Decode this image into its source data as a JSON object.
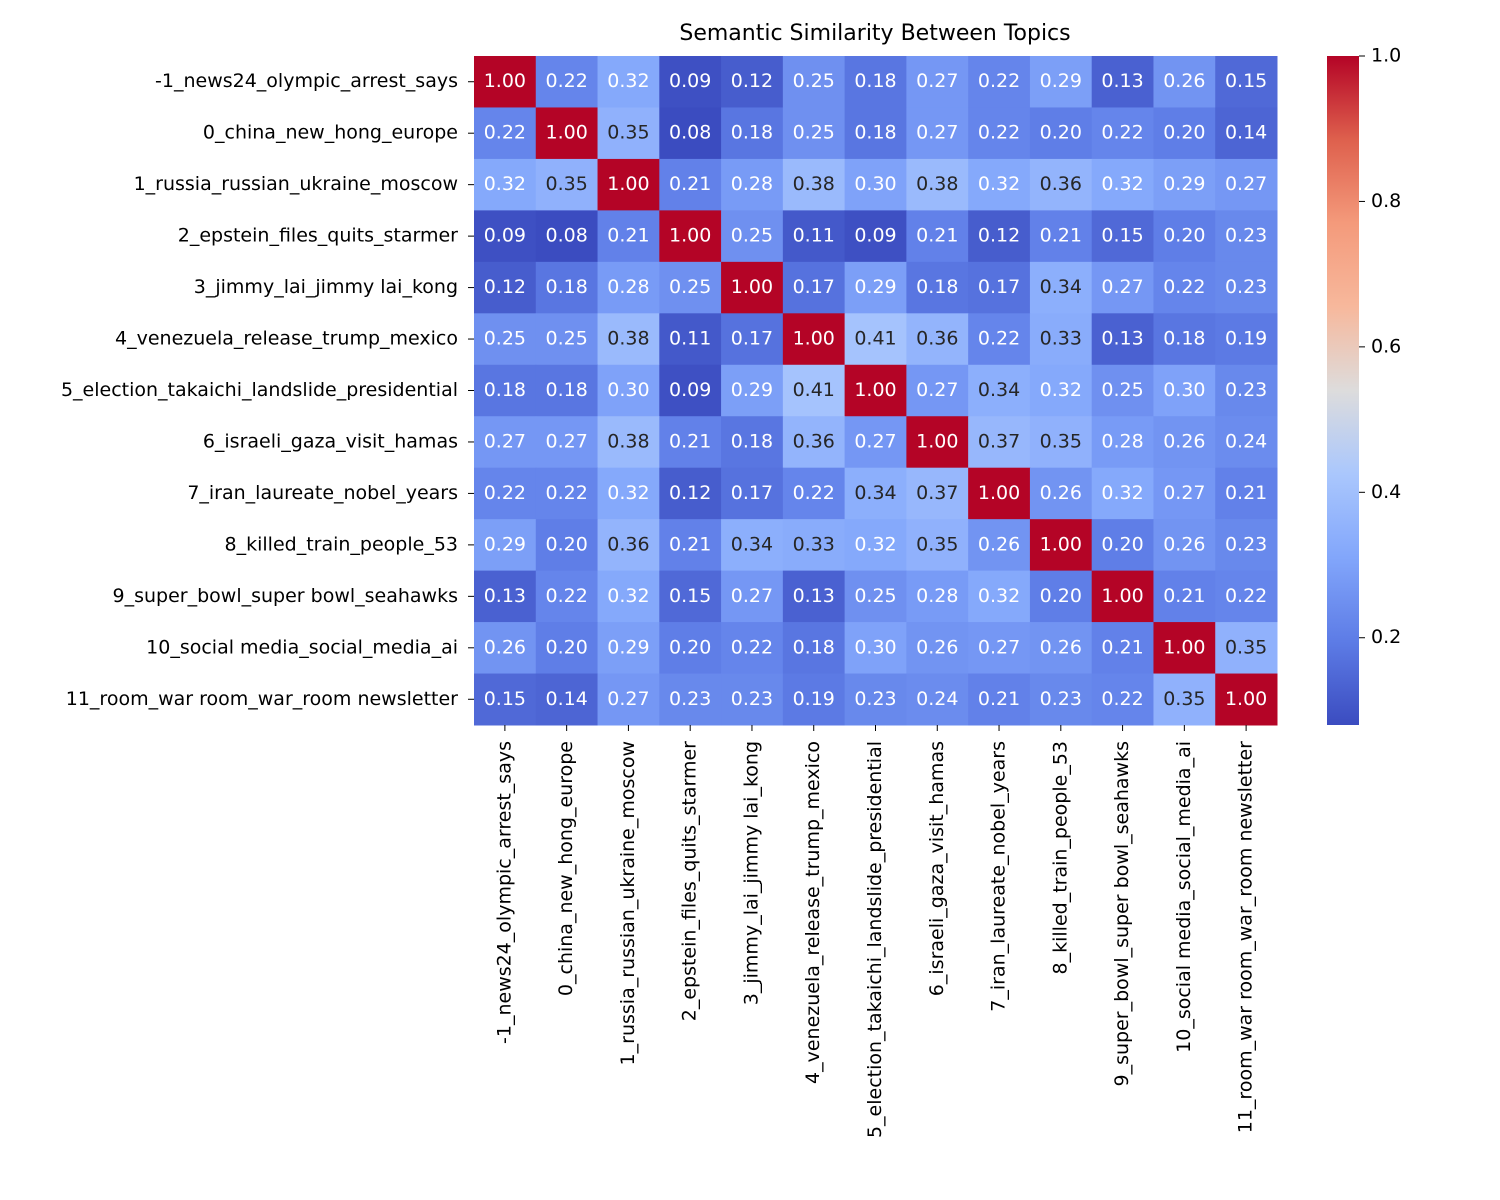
{
  "chart_data": {
    "type": "heatmap",
    "title": "Semantic Similarity Between Topics",
    "categories": [
      "-1_news24_olympic_arrest_says",
      "0_china_new_hong_europe",
      "1_russia_russian_ukraine_moscow",
      "2_epstein_files_quits_starmer",
      "3_jimmy_lai_jimmy lai_kong",
      "4_venezuela_release_trump_mexico",
      "5_election_takaichi_landslide_presidential",
      "6_israeli_gaza_visit_hamas",
      "7_iran_laureate_nobel_years",
      "8_killed_train_people_53",
      "9_super_bowl_super bowl_seahawks",
      "10_social media_social_media_ai",
      "11_room_war room_war_room newsletter"
    ],
    "values": [
      [
        1.0,
        0.22,
        0.32,
        0.09,
        0.12,
        0.25,
        0.18,
        0.27,
        0.22,
        0.29,
        0.13,
        0.26,
        0.15
      ],
      [
        0.22,
        1.0,
        0.35,
        0.08,
        0.18,
        0.25,
        0.18,
        0.27,
        0.22,
        0.2,
        0.22,
        0.2,
        0.14
      ],
      [
        0.32,
        0.35,
        1.0,
        0.21,
        0.28,
        0.38,
        0.3,
        0.38,
        0.32,
        0.36,
        0.32,
        0.29,
        0.27
      ],
      [
        0.09,
        0.08,
        0.21,
        1.0,
        0.25,
        0.11,
        0.09,
        0.21,
        0.12,
        0.21,
        0.15,
        0.2,
        0.23
      ],
      [
        0.12,
        0.18,
        0.28,
        0.25,
        1.0,
        0.17,
        0.29,
        0.18,
        0.17,
        0.34,
        0.27,
        0.22,
        0.23
      ],
      [
        0.25,
        0.25,
        0.38,
        0.11,
        0.17,
        1.0,
        0.41,
        0.36,
        0.22,
        0.33,
        0.13,
        0.18,
        0.19
      ],
      [
        0.18,
        0.18,
        0.3,
        0.09,
        0.29,
        0.41,
        1.0,
        0.27,
        0.34,
        0.32,
        0.25,
        0.3,
        0.23
      ],
      [
        0.27,
        0.27,
        0.38,
        0.21,
        0.18,
        0.36,
        0.27,
        1.0,
        0.37,
        0.35,
        0.28,
        0.26,
        0.24
      ],
      [
        0.22,
        0.22,
        0.32,
        0.12,
        0.17,
        0.22,
        0.34,
        0.37,
        1.0,
        0.26,
        0.32,
        0.27,
        0.21
      ],
      [
        0.29,
        0.2,
        0.36,
        0.21,
        0.34,
        0.33,
        0.32,
        0.35,
        0.26,
        1.0,
        0.2,
        0.26,
        0.23
      ],
      [
        0.13,
        0.22,
        0.32,
        0.15,
        0.27,
        0.13,
        0.25,
        0.28,
        0.32,
        0.2,
        1.0,
        0.21,
        0.22
      ],
      [
        0.26,
        0.2,
        0.29,
        0.2,
        0.22,
        0.18,
        0.3,
        0.26,
        0.27,
        0.26,
        0.21,
        1.0,
        0.35
      ],
      [
        0.15,
        0.14,
        0.27,
        0.23,
        0.23,
        0.19,
        0.23,
        0.24,
        0.21,
        0.23,
        0.22,
        0.35,
        1.0
      ]
    ],
    "value_labels": [
      [
        "1.00",
        "0.22",
        "0.32",
        "0.09",
        "0.12",
        "0.25",
        "0.18",
        "0.27",
        "0.22",
        "0.29",
        "0.13",
        "0.26",
        "0.15"
      ],
      [
        "0.22",
        "1.00",
        "0.35",
        "0.08",
        "0.18",
        "0.25",
        "0.18",
        "0.27",
        "0.22",
        "0.20",
        "0.22",
        "0.20",
        "0.14"
      ],
      [
        "0.32",
        "0.35",
        "1.00",
        "0.21",
        "0.28",
        "0.38",
        "0.30",
        "0.38",
        "0.32",
        "0.36",
        "0.32",
        "0.29",
        "0.27"
      ],
      [
        "0.09",
        "0.08",
        "0.21",
        "1.00",
        "0.25",
        "0.11",
        "0.09",
        "0.21",
        "0.12",
        "0.21",
        "0.15",
        "0.20",
        "0.23"
      ],
      [
        "0.12",
        "0.18",
        "0.28",
        "0.25",
        "1.00",
        "0.17",
        "0.29",
        "0.18",
        "0.17",
        "0.34",
        "0.27",
        "0.22",
        "0.23"
      ],
      [
        "0.25",
        "0.25",
        "0.38",
        "0.11",
        "0.17",
        "1.00",
        "0.41",
        "0.36",
        "0.22",
        "0.33",
        "0.13",
        "0.18",
        "0.19"
      ],
      [
        "0.18",
        "0.18",
        "0.30",
        "0.09",
        "0.29",
        "0.41",
        "1.00",
        "0.27",
        "0.34",
        "0.32",
        "0.25",
        "0.30",
        "0.23"
      ],
      [
        "0.27",
        "0.27",
        "0.38",
        "0.21",
        "0.18",
        "0.36",
        "0.27",
        "1.00",
        "0.37",
        "0.35",
        "0.28",
        "0.26",
        "0.24"
      ],
      [
        "0.22",
        "0.22",
        "0.32",
        "0.12",
        "0.17",
        "0.22",
        "0.34",
        "0.37",
        "1.00",
        "0.26",
        "0.32",
        "0.27",
        "0.21"
      ],
      [
        "0.29",
        "0.20",
        "0.36",
        "0.21",
        "0.34",
        "0.33",
        "0.32",
        "0.35",
        "0.26",
        "1.00",
        "0.20",
        "0.26",
        "0.23"
      ],
      [
        "0.13",
        "0.22",
        "0.32",
        "0.15",
        "0.27",
        "0.13",
        "0.25",
        "0.28",
        "0.32",
        "0.20",
        "1.00",
        "0.21",
        "0.22"
      ],
      [
        "0.26",
        "0.20",
        "0.29",
        "0.20",
        "0.22",
        "0.18",
        "0.30",
        "0.26",
        "0.27",
        "0.26",
        "0.21",
        "1.00",
        "0.35"
      ],
      [
        "0.15",
        "0.14",
        "0.27",
        "0.23",
        "0.23",
        "0.19",
        "0.23",
        "0.24",
        "0.21",
        "0.23",
        "0.22",
        "0.35",
        "1.00"
      ]
    ],
    "colormap": "coolwarm",
    "clim": [
      0.08,
      1
    ],
    "cticks": [
      0.2,
      0.4,
      0.6,
      0.8,
      {
        "value": 1,
        "label": "1.0"
      }
    ]
  }
}
